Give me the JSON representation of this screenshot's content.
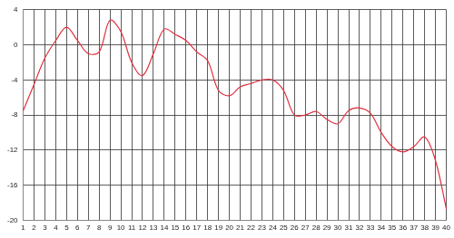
{
  "chart_data": {
    "type": "line",
    "categories": [
      "1",
      "2",
      "3",
      "4",
      "5",
      "6",
      "7",
      "8",
      "9",
      "10",
      "11",
      "12",
      "13",
      "14",
      "15",
      "16",
      "17",
      "18",
      "19",
      "20",
      "21",
      "22",
      "23",
      "24",
      "25",
      "26",
      "27",
      "28",
      "29",
      "30",
      "31",
      "32",
      "33",
      "34",
      "35",
      "36",
      "37",
      "38",
      "39",
      "40"
    ],
    "values": [
      -7.5,
      -4.5,
      -1.5,
      0.5,
      2,
      0.5,
      -1,
      -0.8,
      2.8,
      1.5,
      -2,
      -3.5,
      -1,
      1.8,
      1.2,
      0.5,
      -0.8,
      -1.8,
      -5.2,
      -5.8,
      -4.8,
      -4.4,
      -4,
      -4,
      -5.2,
      -8,
      -8,
      -7.6,
      -8.5,
      -9,
      -7.5,
      -7.2,
      -7.8,
      -10,
      -11.6,
      -12.2,
      -11.6,
      -10.5,
      -13.2,
      -18.7
    ],
    "color": "#e0303f",
    "marker": "none",
    "ylim": [
      -20,
      4
    ],
    "yticks": [
      -20,
      -16,
      -12,
      -8,
      -4,
      0,
      4
    ],
    "grid": true
  }
}
